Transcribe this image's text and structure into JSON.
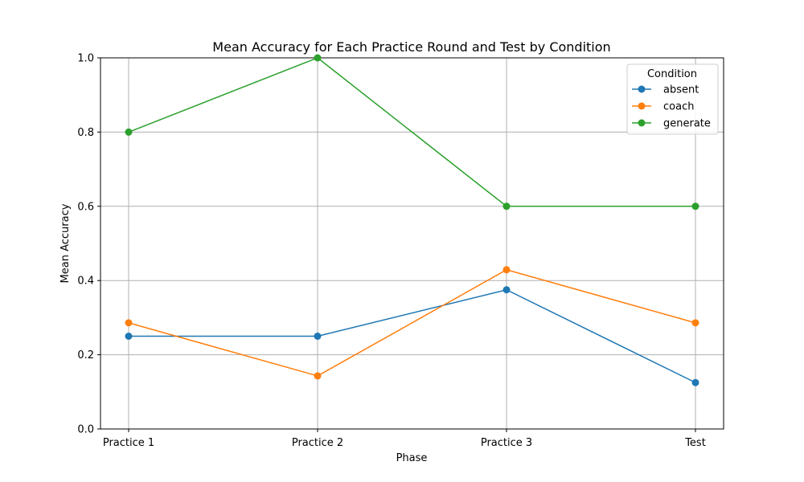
{
  "chart_data": {
    "type": "line",
    "title": "Mean Accuracy for Each Practice Round and Test by Condition",
    "xlabel": "Phase",
    "ylabel": "Mean Accuracy",
    "categories": [
      "Practice 1",
      "Practice 2",
      "Practice 3",
      "Test"
    ],
    "ylim": [
      0,
      1.0
    ],
    "yticks": [
      "0.0",
      "0.2",
      "0.4",
      "0.6",
      "0.8",
      "1.0"
    ],
    "grid": true,
    "legend": {
      "title": "Condition",
      "position": "top-right"
    },
    "series": [
      {
        "name": "absent",
        "color": "#1f77b4",
        "values": [
          0.25,
          0.25,
          0.375,
          0.125
        ]
      },
      {
        "name": "coach",
        "color": "#ff7f0e",
        "values": [
          0.286,
          0.143,
          0.429,
          0.286
        ]
      },
      {
        "name": "generate",
        "color": "#2ca02c",
        "values": [
          0.8,
          1.0,
          0.6,
          0.6
        ]
      }
    ]
  }
}
